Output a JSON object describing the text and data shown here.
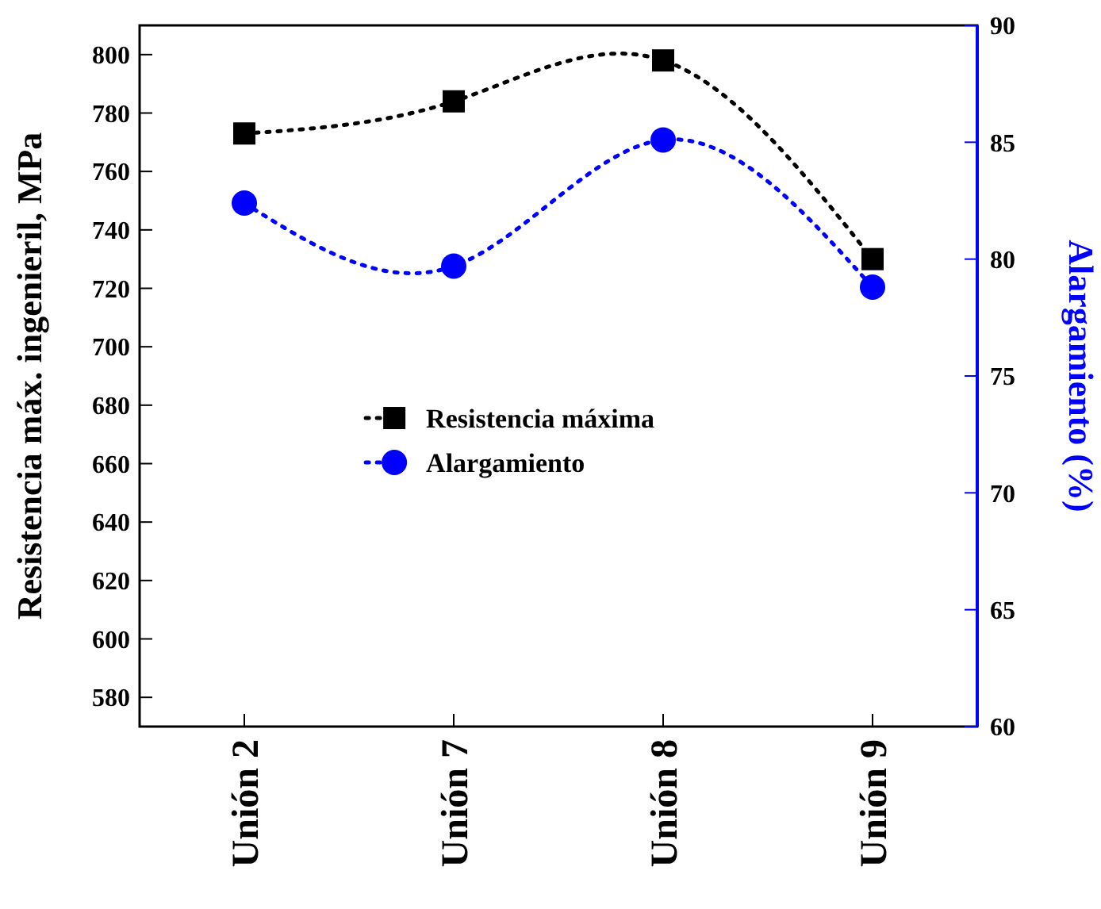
{
  "chart_data": {
    "type": "line",
    "categories": [
      "Unión 2",
      "Unión 7",
      "Unión 8",
      "Unión 9"
    ],
    "ylabel": "Resistencia máx. ingenieril, MPa",
    "y2label": "Alargamiento (%)",
    "ylim": [
      570,
      810
    ],
    "yticks": [
      580,
      600,
      620,
      640,
      660,
      680,
      700,
      720,
      740,
      760,
      780,
      800
    ],
    "y2lim": [
      60,
      90
    ],
    "y2ticks": [
      60,
      65,
      70,
      75,
      80,
      85,
      90
    ],
    "series": [
      {
        "name": "Resistencia máxima",
        "color": "#000000",
        "values": [
          773,
          784,
          798,
          730
        ],
        "marker": "square"
      },
      {
        "name": "Alargamiento",
        "color": "#0000ff",
        "values": [
          82.4,
          79.7,
          85.1,
          78.8
        ],
        "marker": "circle",
        "axis": "y2"
      }
    ],
    "line_style": "dotted",
    "legend": "center",
    "grid": false
  }
}
